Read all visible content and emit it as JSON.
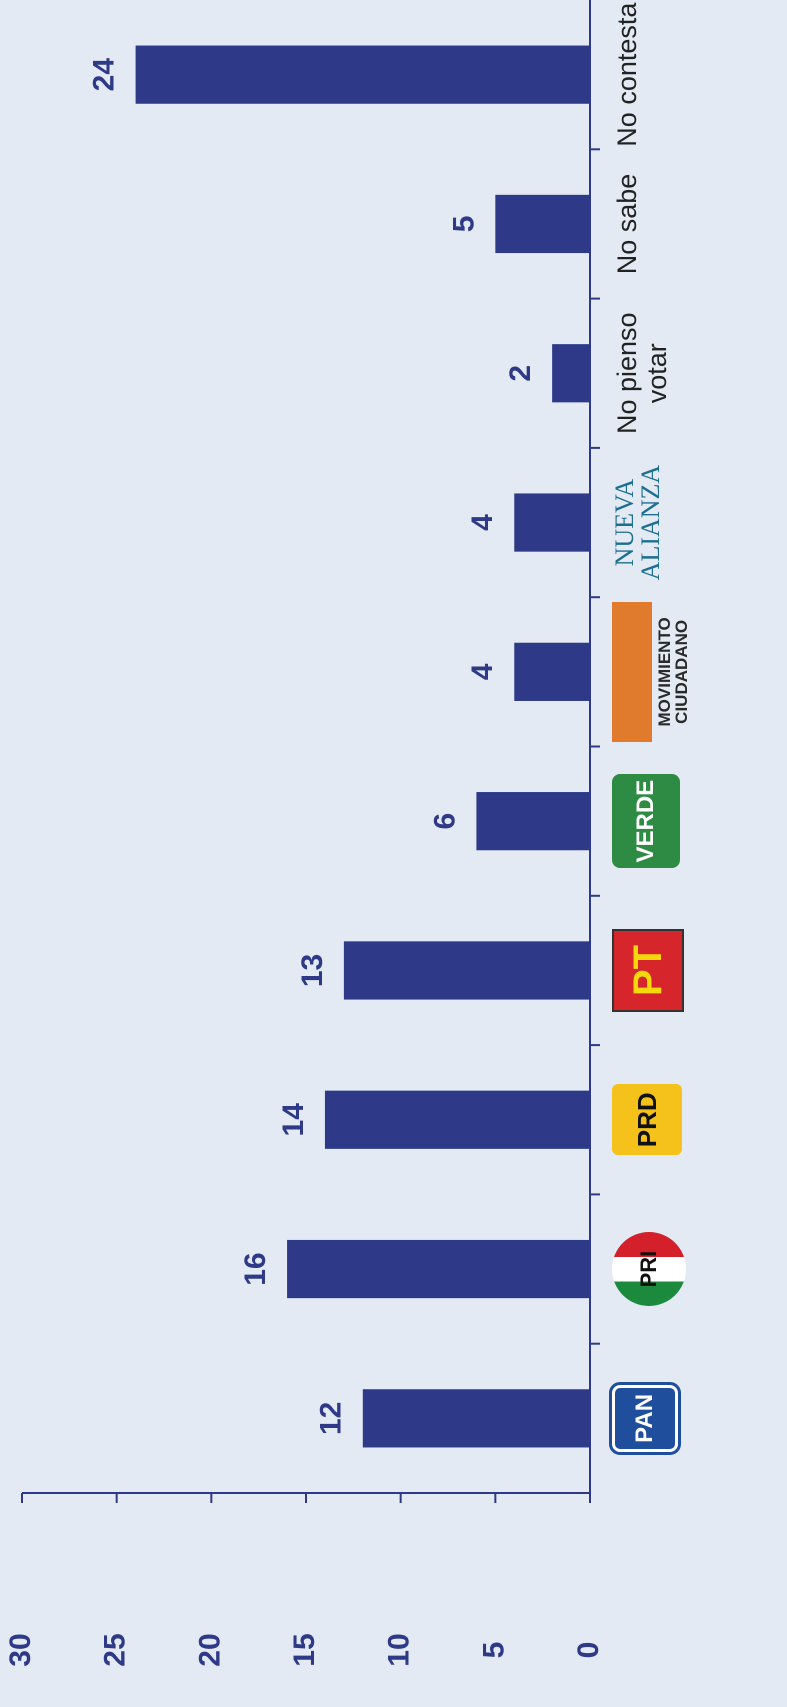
{
  "chart_data": {
    "type": "bar",
    "categories": [
      "PAN",
      "PRI",
      "PRD",
      "PT",
      "VERDE",
      "MOVIMIENTO CIUDADANO",
      "NUEVA ALIANZA",
      "No pienso votar",
      "No sabe",
      "No contesta"
    ],
    "values": [
      12,
      16,
      14,
      13,
      6,
      4,
      4,
      2,
      5,
      24
    ],
    "color": "#2e3a87",
    "ylim": [
      0,
      30
    ],
    "yticks": [
      0,
      5,
      10,
      15,
      20,
      25,
      30
    ],
    "grid": false
  }
}
